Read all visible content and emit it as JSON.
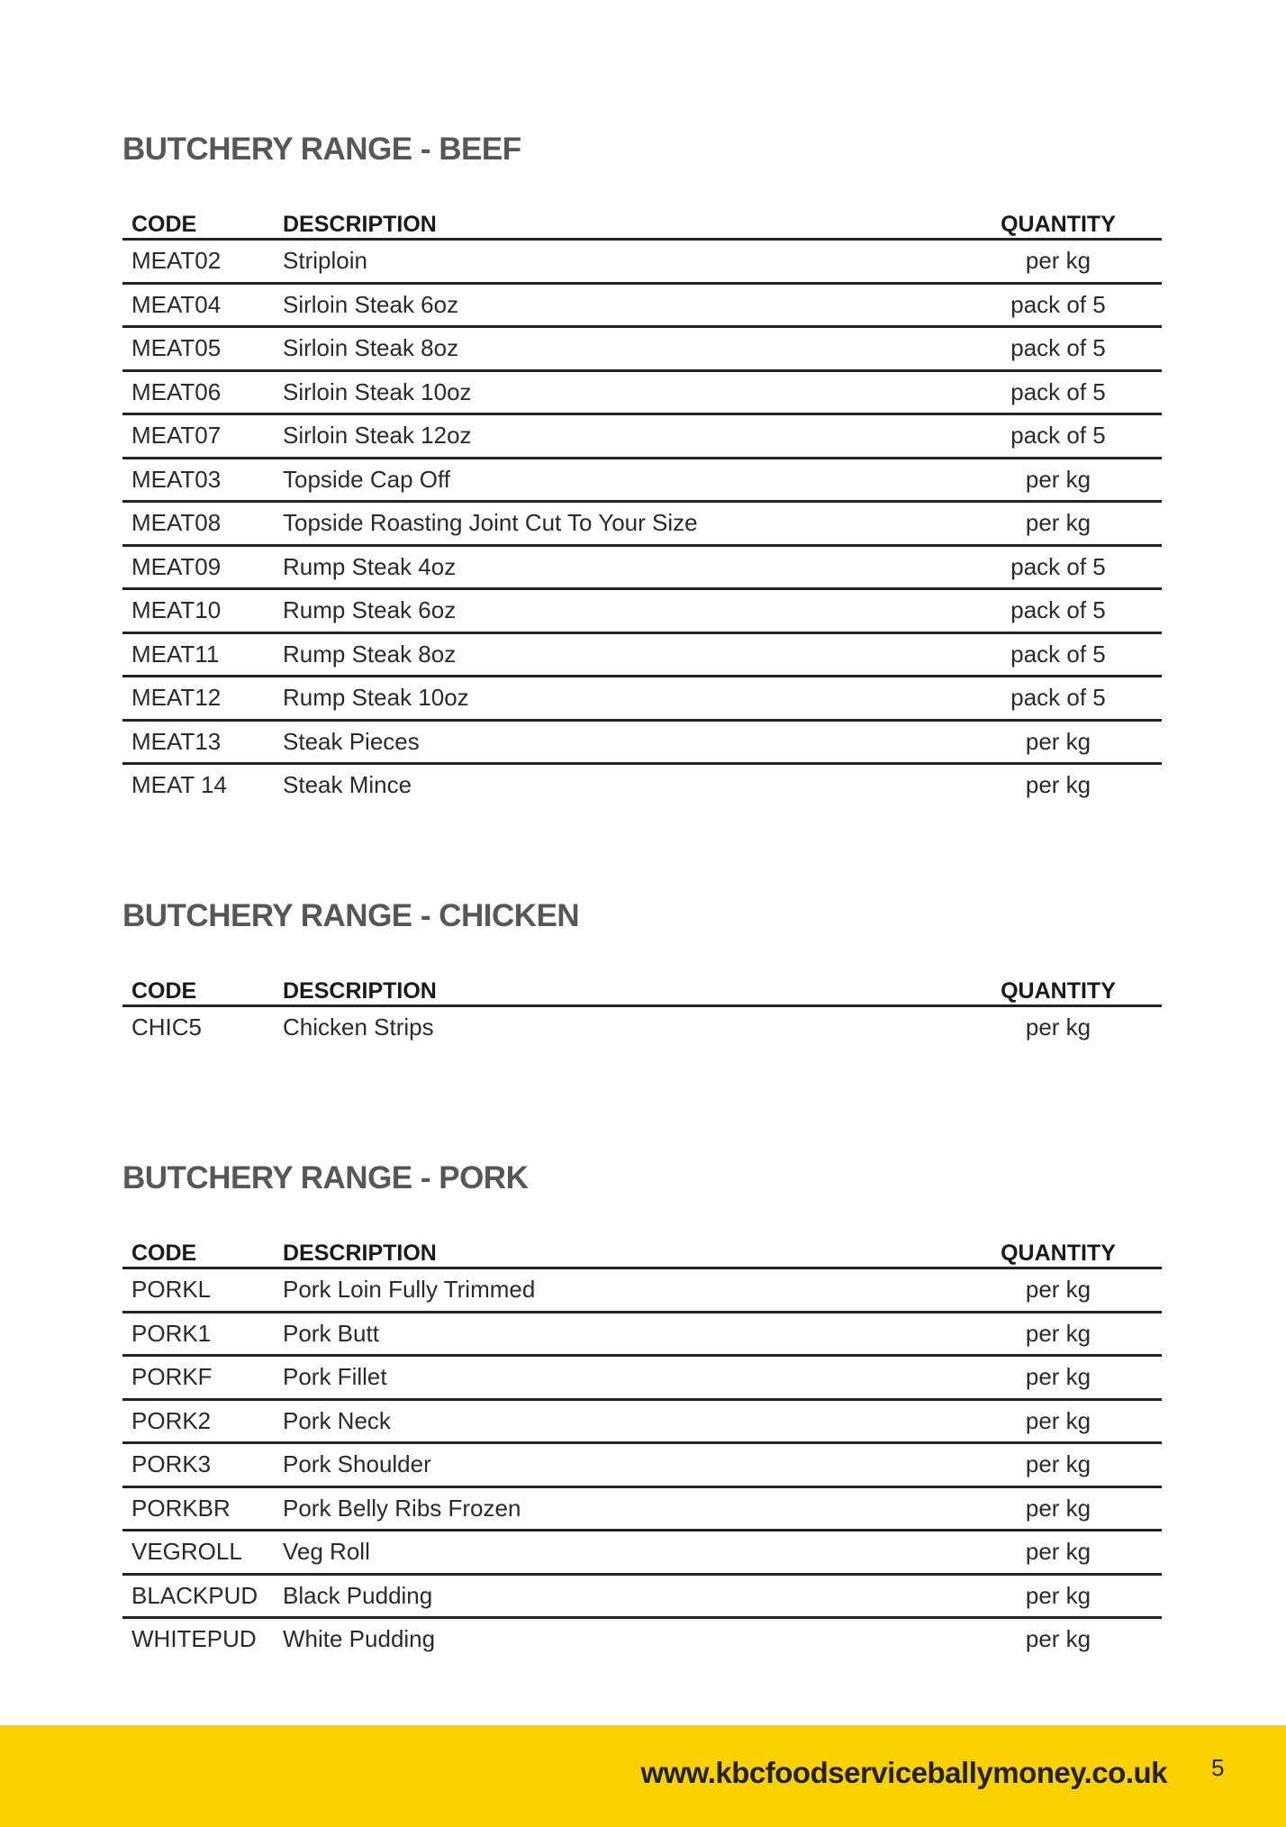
{
  "columns": {
    "code": "CODE",
    "description": "DESCRIPTION",
    "quantity": "QUANTITY"
  },
  "sections": [
    {
      "title": "BUTCHERY RANGE - BEEF",
      "rows": [
        {
          "code": "MEAT02",
          "description": "Striploin",
          "quantity": "per kg"
        },
        {
          "code": "MEAT04",
          "description": "Sirloin Steak 6oz",
          "quantity": "pack of 5"
        },
        {
          "code": "MEAT05",
          "description": "Sirloin Steak 8oz",
          "quantity": "pack of 5"
        },
        {
          "code": "MEAT06",
          "description": "Sirloin Steak 10oz",
          "quantity": "pack of 5"
        },
        {
          "code": "MEAT07",
          "description": "Sirloin Steak 12oz",
          "quantity": "pack of 5"
        },
        {
          "code": "MEAT03",
          "description": "Topside Cap Off",
          "quantity": "per kg"
        },
        {
          "code": "MEAT08",
          "description": "Topside Roasting Joint Cut To Your Size",
          "quantity": "per kg"
        },
        {
          "code": "MEAT09",
          "description": "Rump Steak 4oz",
          "quantity": "pack of 5"
        },
        {
          "code": "MEAT10",
          "description": "Rump Steak 6oz",
          "quantity": "pack of 5"
        },
        {
          "code": "MEAT11",
          "description": "Rump Steak 8oz",
          "quantity": "pack of 5"
        },
        {
          "code": "MEAT12",
          "description": "Rump Steak 10oz",
          "quantity": "pack of 5"
        },
        {
          "code": "MEAT13",
          "description": "Steak Pieces",
          "quantity": "per kg"
        },
        {
          "code": "MEAT 14",
          "description": "Steak Mince",
          "quantity": "per kg"
        }
      ]
    },
    {
      "title": "BUTCHERY RANGE - CHICKEN",
      "rows": [
        {
          "code": "CHIC5",
          "description": "Chicken Strips",
          "quantity": "per kg"
        }
      ]
    },
    {
      "title": "BUTCHERY RANGE - PORK",
      "rows": [
        {
          "code": "PORKL",
          "description": "Pork Loin Fully Trimmed",
          "quantity": "per kg"
        },
        {
          "code": "PORK1",
          "description": "Pork Butt",
          "quantity": "per kg"
        },
        {
          "code": "PORKF",
          "description": "Pork Fillet",
          "quantity": "per kg"
        },
        {
          "code": "PORK2",
          "description": "Pork Neck",
          "quantity": "per kg"
        },
        {
          "code": "PORK3",
          "description": "Pork Shoulder",
          "quantity": "per kg"
        },
        {
          "code": "PORKBR",
          "description": "Pork Belly Ribs Frozen",
          "quantity": "per kg"
        },
        {
          "code": "VEGROLL",
          "description": "Veg Roll",
          "quantity": "per kg"
        },
        {
          "code": "BLACKPUD",
          "description": "Black Pudding",
          "quantity": "per kg"
        },
        {
          "code": "WHITEPUD",
          "description": "White Pudding",
          "quantity": "per kg"
        }
      ]
    }
  ],
  "footer": {
    "url": "www.kbcfoodserviceballymoney.co.uk",
    "page_number": "5",
    "band_color": "#fdd000"
  }
}
